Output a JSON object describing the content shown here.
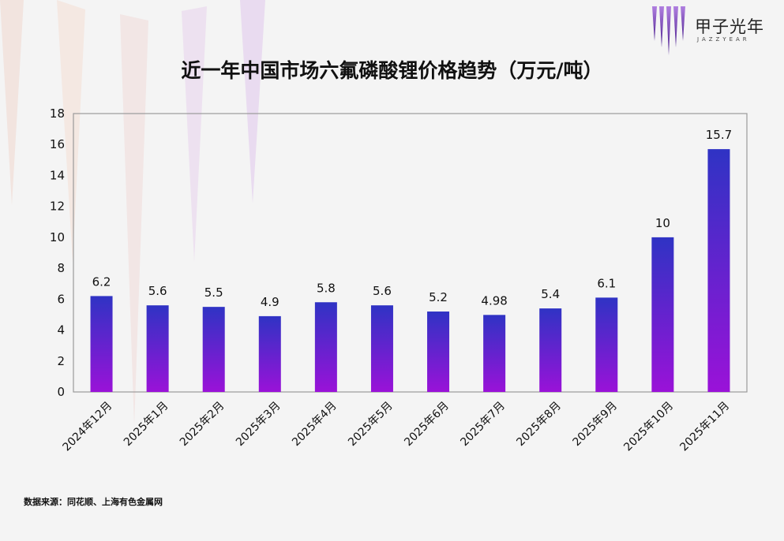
{
  "brand": {
    "name": "甲子光年",
    "subtitle": "JAZZYEAR",
    "logo_icon": "vertical-bars-logo-icon",
    "colors": {
      "dark": "#4b1f8e",
      "light": "#b07fe0"
    }
  },
  "source_text": "数据来源：同花顺、上海有色金属网",
  "chart_data": {
    "type": "bar",
    "title": "近一年中国市场六氟磷酸锂价格趋势（万元/吨）",
    "xlabel": "",
    "ylabel": "",
    "ylim": [
      0,
      18
    ],
    "yticks": [
      0,
      2,
      4,
      6,
      8,
      10,
      12,
      14,
      16,
      18
    ],
    "grid": false,
    "categories": [
      "2024年12月",
      "2025年1月",
      "2025年2月",
      "2025年3月",
      "2025年4月",
      "2025年5月",
      "2025年6月",
      "2025年7月",
      "2025年8月",
      "2025年9月",
      "2025年10月",
      "2025年11月"
    ],
    "values": [
      6.2,
      5.6,
      5.5,
      4.9,
      5.8,
      5.6,
      5.2,
      4.98,
      5.4,
      6.1,
      10,
      15.7
    ],
    "value_labels": [
      "6.2",
      "5.6",
      "5.5",
      "4.9",
      "5.8",
      "5.6",
      "5.2",
      "4.98",
      "5.4",
      "6.1",
      "10",
      "15.7"
    ],
    "colors": {
      "bar_top": "#2f33c4",
      "bar_bottom": "#9a12d8",
      "frame": "#9a9a9a",
      "text": "#111111"
    }
  }
}
